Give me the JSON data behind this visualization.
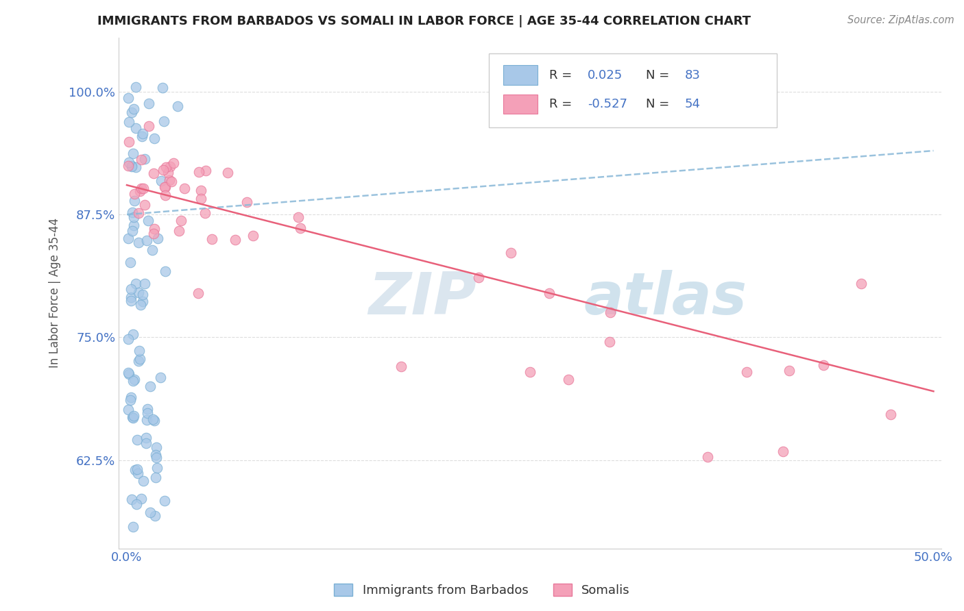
{
  "title": "IMMIGRANTS FROM BARBADOS VS SOMALI IN LABOR FORCE | AGE 35-44 CORRELATION CHART",
  "source_text": "Source: ZipAtlas.com",
  "ylabel": "In Labor Force | Age 35-44",
  "xlim": [
    -0.005,
    0.505
  ],
  "ylim": [
    0.535,
    1.055
  ],
  "xtick_vals": [
    0.0,
    0.5
  ],
  "xtick_labels": [
    "0.0%",
    "50.0%"
  ],
  "ytick_vals": [
    0.625,
    0.75,
    0.875,
    1.0
  ],
  "ytick_labels": [
    "62.5%",
    "75.0%",
    "87.5%",
    "100.0%"
  ],
  "barbados_R": 0.025,
  "barbados_N": 83,
  "somali_R": -0.527,
  "somali_N": 54,
  "barbados_color": "#a8c8e8",
  "barbados_edge": "#7aafd4",
  "somali_color": "#f4a0b8",
  "somali_edge": "#e8789a",
  "barbados_line_color": "#88b8d8",
  "somali_line_color": "#e8607a",
  "legend_label_barbados": "Immigrants from Barbados",
  "legend_label_somali": "Somalis",
  "watermark_zip": "ZIP",
  "watermark_atlas": "atlas",
  "background_color": "#ffffff",
  "title_color": "#222222",
  "axis_label_color": "#555555",
  "tick_label_color": "#4472c4",
  "grid_color": "#dddddd",
  "r_text_color": "#4472c4",
  "legend_r_label_color": "#333333"
}
